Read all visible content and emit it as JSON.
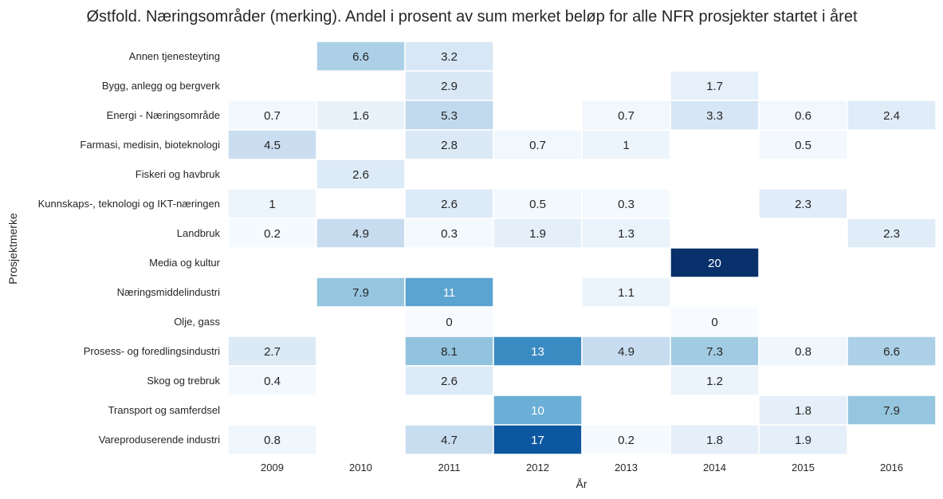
{
  "chart_data": {
    "type": "heatmap",
    "title": "Østfold. Næringsområder (merking). Andel i prosent av sum merket beløp for alle NFR prosjekter startet i året",
    "xlabel": "År",
    "ylabel": "Prosjektmerke",
    "x": [
      "2009",
      "2010",
      "2011",
      "2012",
      "2013",
      "2014",
      "2015",
      "2016"
    ],
    "y": [
      "Annen tjenesteyting",
      "Bygg, anlegg og bergverk",
      "Energi - Næringsområde",
      "Farmasi, medisin, bioteknologi",
      "Fiskeri og havbruk",
      "Kunnskaps-, teknologi og IKT-næringen",
      "Landbruk",
      "Media og kultur",
      "Næringsmiddelindustri",
      "Olje, gass",
      "Prosess- og foredlingsindustri",
      "Skog og trebruk",
      "Transport og samferdsel",
      "Vareproduserende industri"
    ],
    "values": [
      [
        null,
        6.6,
        3.2,
        null,
        null,
        null,
        null,
        null
      ],
      [
        null,
        null,
        2.9,
        null,
        null,
        1.7,
        null,
        null
      ],
      [
        0.7,
        1.6,
        5.3,
        null,
        0.7,
        3.3,
        0.6,
        2.4
      ],
      [
        4.5,
        null,
        2.8,
        0.7,
        1,
        null,
        0.5,
        null
      ],
      [
        null,
        2.6,
        null,
        null,
        null,
        null,
        null,
        null
      ],
      [
        1,
        null,
        2.6,
        0.5,
        0.3,
        null,
        2.3,
        null
      ],
      [
        0.2,
        4.9,
        0.3,
        1.9,
        1.3,
        null,
        null,
        2.3
      ],
      [
        null,
        null,
        null,
        null,
        null,
        20,
        null,
        null
      ],
      [
        null,
        7.9,
        11,
        null,
        1.1,
        null,
        null,
        null
      ],
      [
        null,
        null,
        0,
        null,
        null,
        0,
        null,
        null
      ],
      [
        2.7,
        null,
        8.1,
        13,
        4.9,
        7.3,
        0.8,
        6.6
      ],
      [
        0.4,
        null,
        2.6,
        null,
        null,
        1.2,
        null,
        null
      ],
      [
        null,
        null,
        null,
        10,
        null,
        null,
        1.8,
        7.9
      ],
      [
        0.8,
        null,
        4.7,
        17,
        0.2,
        1.8,
        1.9,
        null
      ]
    ],
    "colormap": "Blues",
    "vmin": 0,
    "vmax": 20,
    "grid": false,
    "legend": "none"
  }
}
